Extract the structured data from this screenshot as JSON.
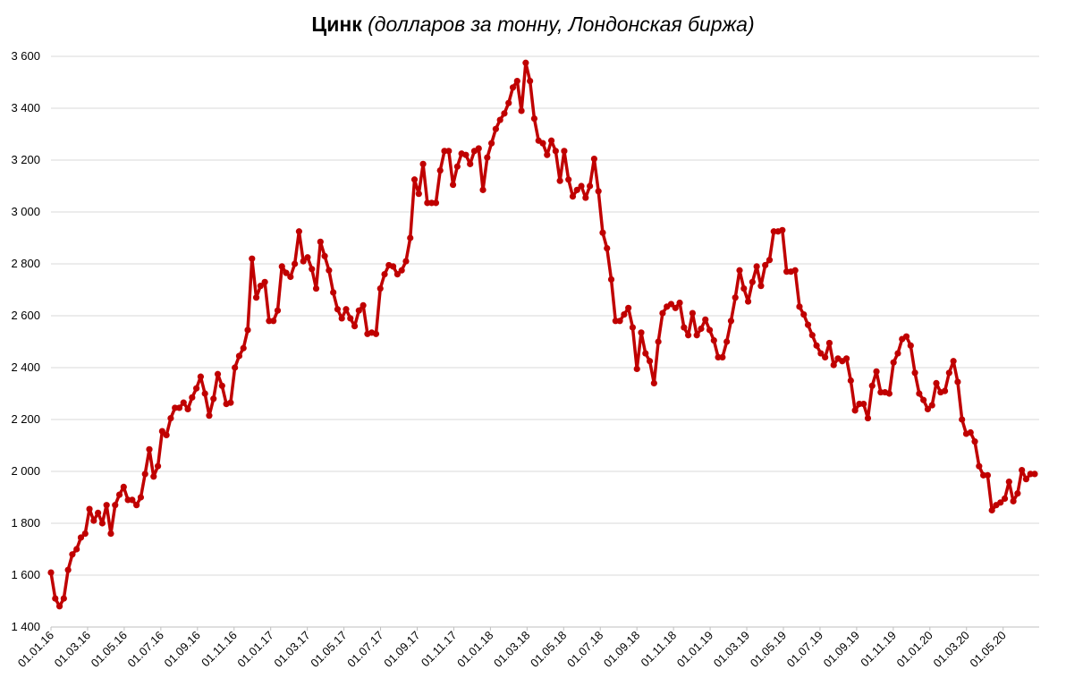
{
  "chart_data": {
    "type": "line",
    "title": "Цинк",
    "subtitle": "(долларов за тонну, Лондонская биржа)",
    "xlabel": "",
    "ylabel": "",
    "ylim": [
      1400,
      3600
    ],
    "yticks": [
      1400,
      1600,
      1800,
      2000,
      2200,
      2400,
      2600,
      2800,
      3000,
      3200,
      3400,
      3600
    ],
    "ytick_labels": [
      "1 400",
      "1 600",
      "1 800",
      "2 000",
      "2 200",
      "2 400",
      "2 600",
      "2 800",
      "3 000",
      "3 200",
      "3 400",
      "3 600"
    ],
    "xtick_labels": [
      "01.01.16",
      "01.03.16",
      "01.05.16",
      "01.07.16",
      "01.09.16",
      "01.11.16",
      "01.01.17",
      "01.03.17",
      "01.05.17",
      "01.07.17",
      "01.09.17",
      "01.11.17",
      "01.01.18",
      "01.03.18",
      "01.05.18",
      "01.07.18",
      "01.09.18",
      "01.11.18",
      "01.01.19",
      "01.03.19",
      "01.05.19",
      "01.07.19",
      "01.09.19",
      "01.11.19",
      "01.01.20",
      "01.03.20",
      "01.05.20"
    ],
    "grid": true,
    "legend": "none",
    "line_color": "#c00000",
    "series": [
      {
        "values": [
          1610,
          1510,
          1480,
          1510,
          1620,
          1680,
          1700,
          1745,
          1760,
          1855,
          1810,
          1840,
          1800,
          1870,
          1760,
          1870,
          1910,
          1940,
          1890,
          1890,
          1870,
          1900,
          1990,
          2085,
          1980,
          2020,
          2155,
          2140,
          2205,
          2245,
          2245,
          2265,
          2240,
          2285,
          2320,
          2365,
          2300,
          2215,
          2280,
          2375,
          2330,
          2260,
          2265,
          2400,
          2445,
          2475,
          2545,
          2820,
          2670,
          2715,
          2730,
          2580,
          2580,
          2620,
          2790,
          2765,
          2750,
          2800,
          2925,
          2810,
          2825,
          2780,
          2705,
          2885,
          2830,
          2775,
          2690,
          2625,
          2590,
          2625,
          2590,
          2560,
          2620,
          2640,
          2530,
          2535,
          2530,
          2705,
          2760,
          2795,
          2790,
          2760,
          2775,
          2810,
          2900,
          3125,
          3070,
          3185,
          3035,
          3035,
          3035,
          3160,
          3235,
          3235,
          3105,
          3175,
          3225,
          3220,
          3185,
          3235,
          3245,
          3085,
          3210,
          3265,
          3320,
          3355,
          3380,
          3420,
          3480,
          3505,
          3390,
          3575,
          3505,
          3360,
          3275,
          3265,
          3220,
          3275,
          3235,
          3120,
          3235,
          3125,
          3060,
          3085,
          3100,
          3055,
          3100,
          3205,
          3080,
          2920,
          2860,
          2740,
          2580,
          2580,
          2605,
          2630,
          2555,
          2395,
          2535,
          2455,
          2425,
          2340,
          2500,
          2610,
          2635,
          2645,
          2630,
          2650,
          2555,
          2525,
          2610,
          2525,
          2550,
          2585,
          2545,
          2505,
          2440,
          2440,
          2500,
          2580,
          2670,
          2775,
          2705,
          2655,
          2730,
          2790,
          2715,
          2795,
          2815,
          2925,
          2925,
          2930,
          2770,
          2770,
          2775,
          2635,
          2605,
          2565,
          2525,
          2485,
          2455,
          2440,
          2495,
          2410,
          2435,
          2425,
          2435,
          2350,
          2235,
          2260,
          2260,
          2205,
          2330,
          2385,
          2305,
          2305,
          2300,
          2420,
          2455,
          2510,
          2520,
          2485,
          2380,
          2300,
          2275,
          2240,
          2255,
          2340,
          2305,
          2310,
          2380,
          2425,
          2345,
          2200,
          2145,
          2150,
          2115,
          2020,
          1985,
          1985,
          1850,
          1870,
          1880,
          1895,
          1960,
          1885,
          1915,
          2005,
          1970,
          1990,
          1990
        ]
      }
    ]
  }
}
